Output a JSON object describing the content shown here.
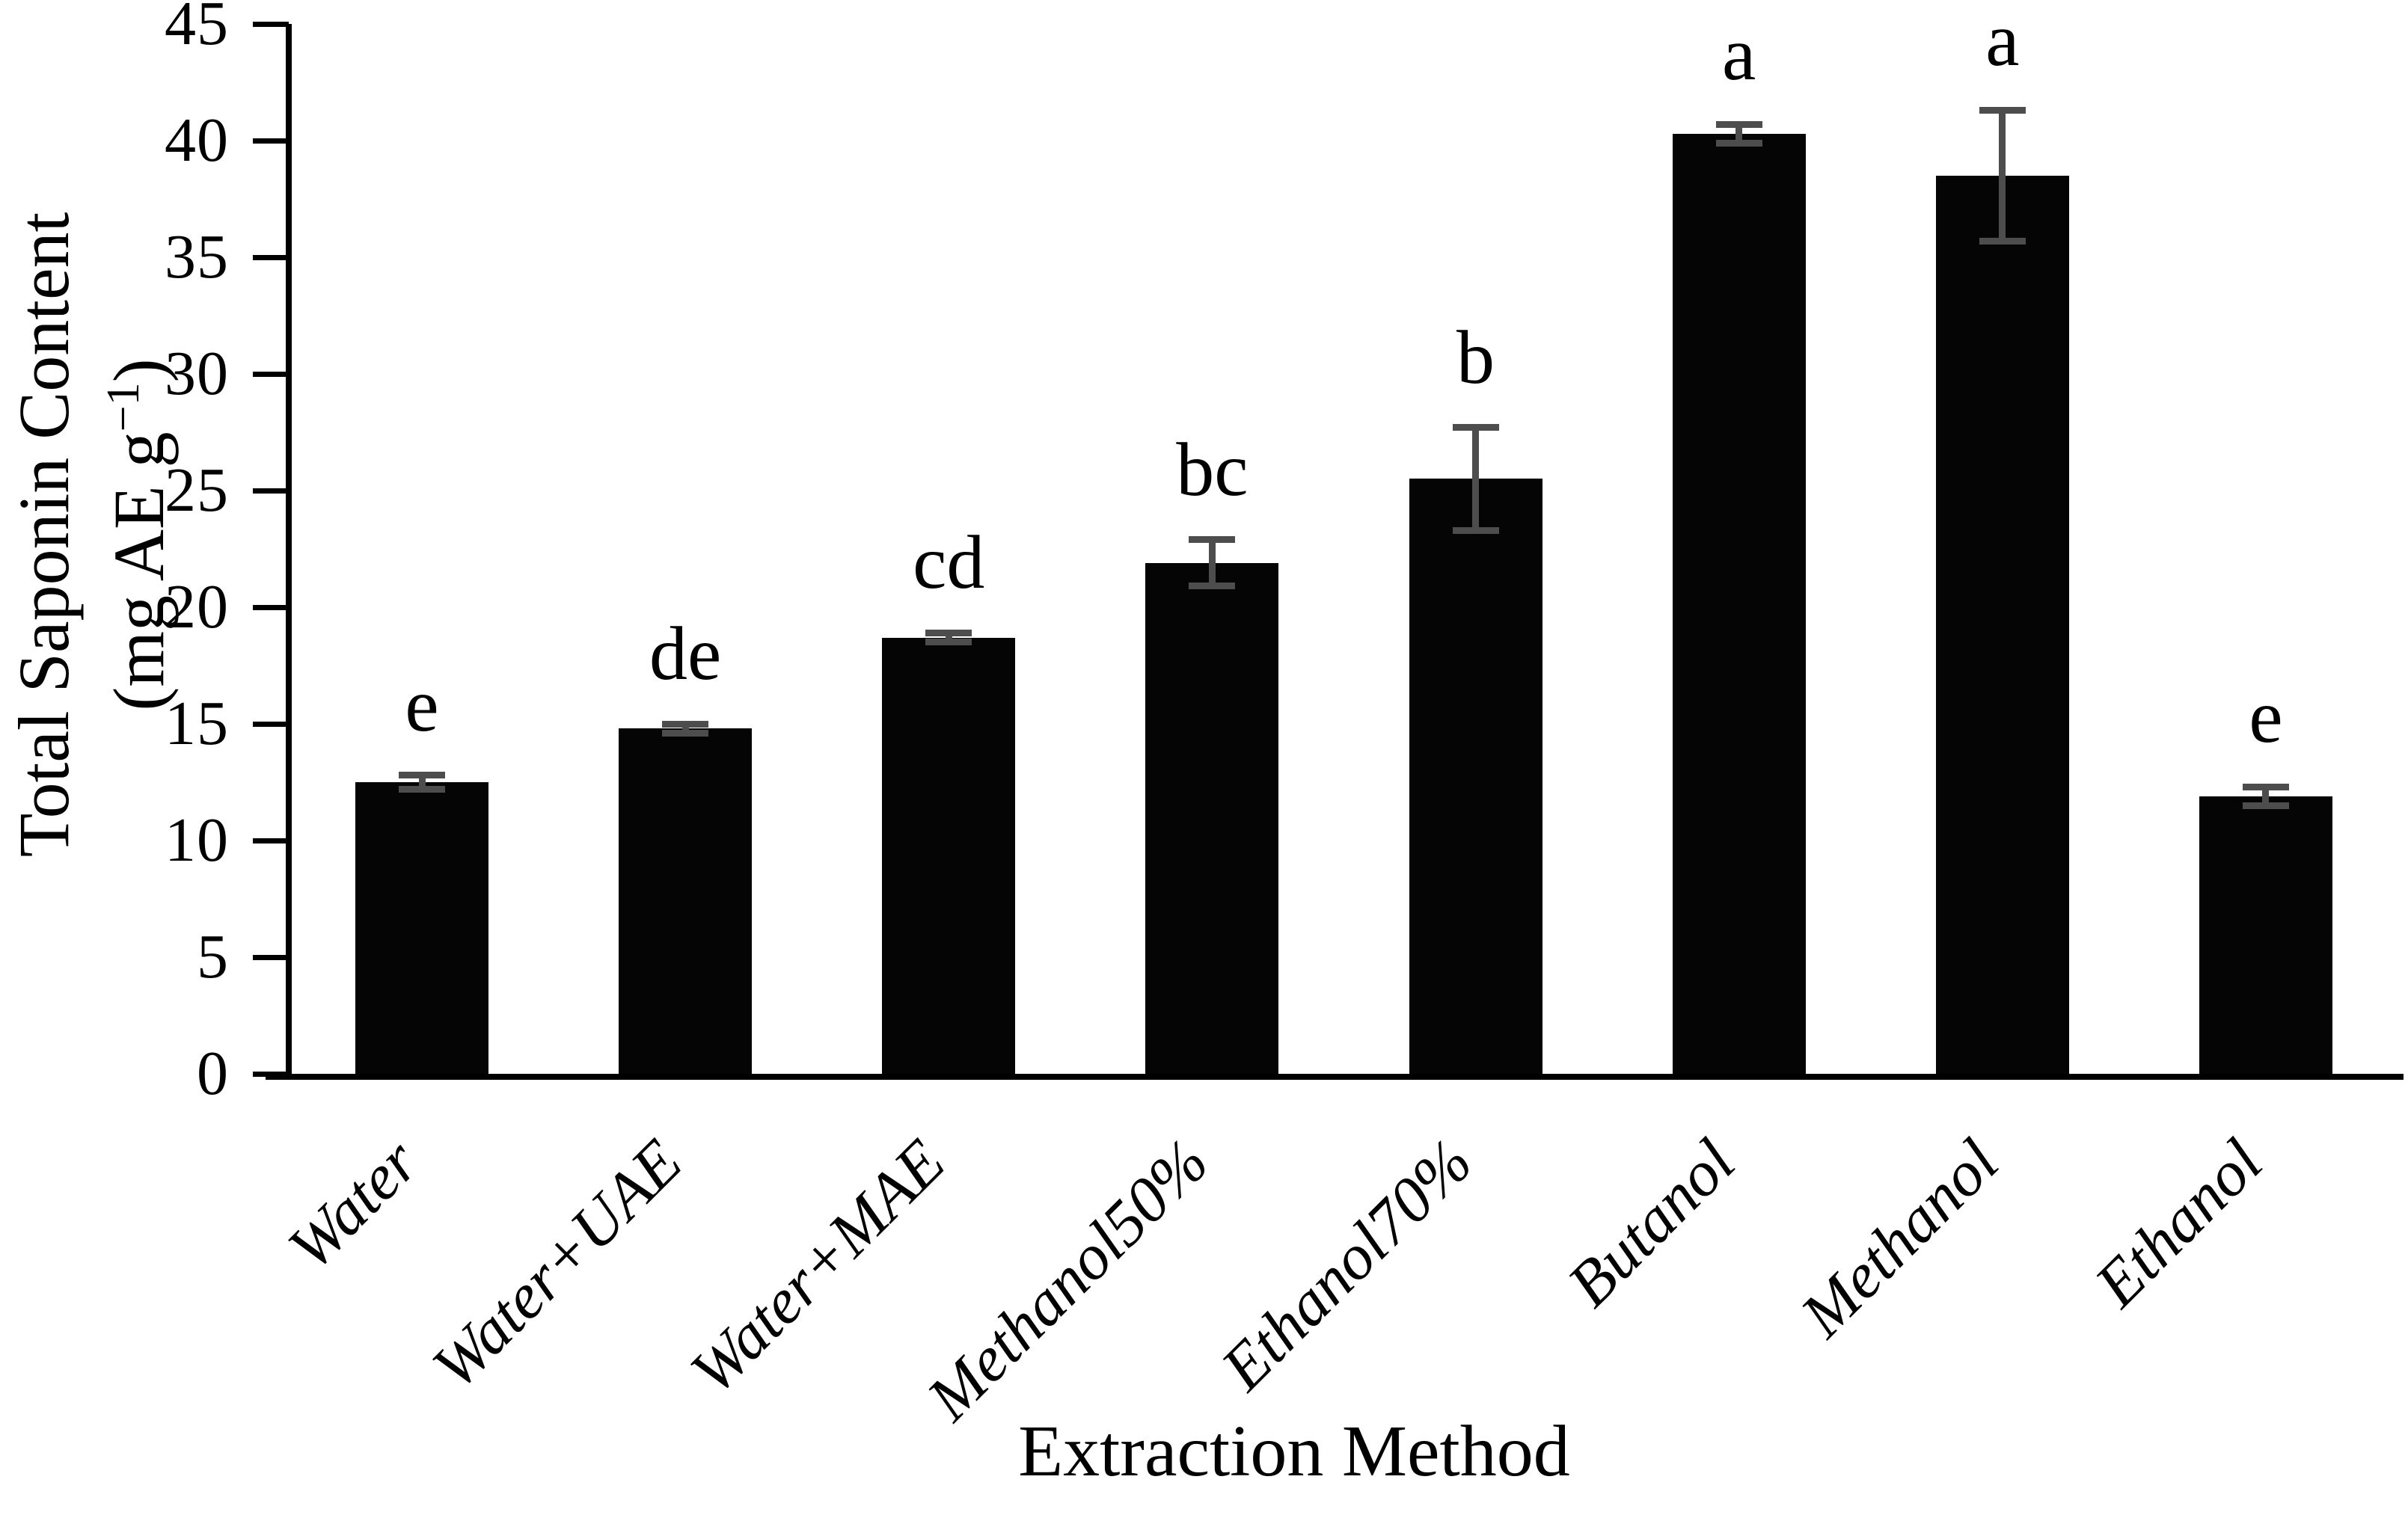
{
  "figure": {
    "y_axis_title_line1": "Total Saponin Content",
    "y_axis_title_line2_pre": "(mg AE g",
    "y_axis_title_sup": "−1",
    "y_axis_title_line2_post": ")",
    "x_axis_title": "Extraction Method"
  },
  "chart_data": {
    "type": "bar",
    "title": "",
    "xlabel": "Extraction Method",
    "ylabel": "Total Saponin Content (mg AE g-1)",
    "categories": [
      "Water",
      "Water+UAE",
      "Water+MAE",
      "Methanol50%",
      "Ethanol70%",
      "Butanol",
      "Methanol",
      "Ethanol"
    ],
    "values": [
      12.5,
      14.8,
      18.7,
      21.9,
      25.5,
      40.3,
      38.5,
      11.9
    ],
    "errors": [
      0.3,
      0.2,
      0.2,
      1.0,
      2.2,
      0.4,
      2.8,
      0.4
    ],
    "sig_letters": [
      "e",
      "de",
      "cd",
      "bc",
      "b",
      "a",
      "a",
      "e"
    ],
    "yticks": [
      0,
      5,
      10,
      15,
      20,
      25,
      30,
      35,
      40,
      45
    ],
    "ylim": [
      0,
      45
    ],
    "grid": false,
    "legend": false,
    "bar_color": "#050505",
    "error_bar_color": "#4d4d4d",
    "text_color": "#000000"
  }
}
